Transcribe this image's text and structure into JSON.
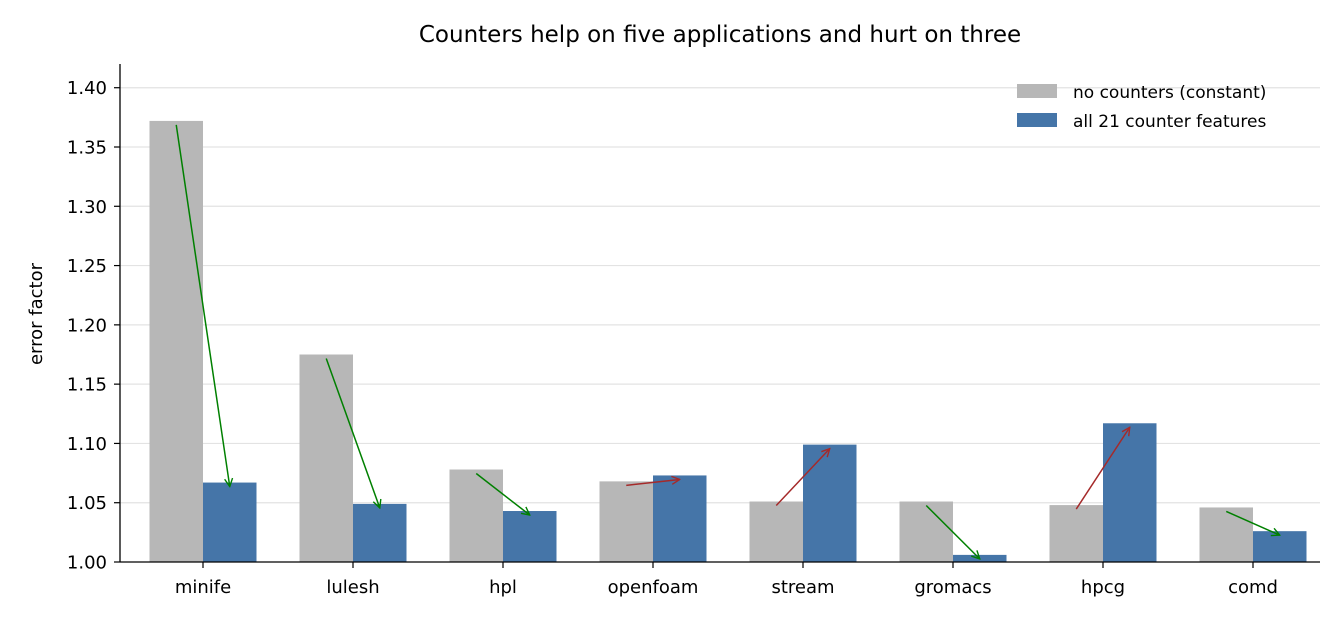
{
  "chart_data": {
    "type": "bar",
    "title": "Counters help on five applications and hurt on three",
    "xlabel": "",
    "ylabel": "error factor",
    "categories": [
      "minife",
      "lulesh",
      "hpl",
      "openfoam",
      "stream",
      "gromacs",
      "hpcg",
      "comd"
    ],
    "series": [
      {
        "name": "no counters (constant)",
        "color": "#b7b7b7",
        "values": [
          1.372,
          1.175,
          1.078,
          1.068,
          1.051,
          1.051,
          1.048,
          1.046
        ]
      },
      {
        "name": "all 21 counter features",
        "color": "#4575a8",
        "values": [
          1.067,
          1.049,
          1.043,
          1.073,
          1.099,
          1.006,
          1.117,
          1.026
        ]
      }
    ],
    "ylim": [
      1.0,
      1.42
    ],
    "yticks": [
      "1.00",
      "1.05",
      "1.10",
      "1.15",
      "1.20",
      "1.25",
      "1.30",
      "1.35",
      "1.40"
    ],
    "grid": "horizontal",
    "legend_position": "top-right",
    "arrow_colors": {
      "improve": "#008000",
      "worsen": "#a52a2a"
    }
  }
}
